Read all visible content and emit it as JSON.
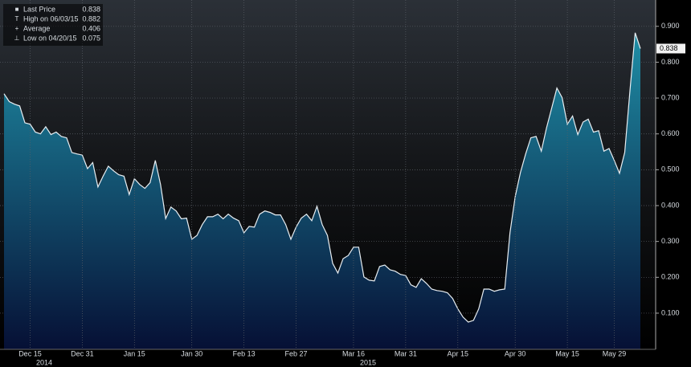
{
  "chart_data": {
    "type": "area",
    "line_color": "#e8eef2",
    "fill_top": "#1f8ea6",
    "fill_bottom": "#061035",
    "grid": true,
    "ylim": [
      0,
      0.96
    ],
    "yticks": [
      {
        "value": 0.1,
        "label": "0.100"
      },
      {
        "value": 0.2,
        "label": "0.200"
      },
      {
        "value": 0.3,
        "label": "0.300"
      },
      {
        "value": 0.4,
        "label": "0.400"
      },
      {
        "value": 0.5,
        "label": "0.500"
      },
      {
        "value": 0.6,
        "label": "0.600"
      },
      {
        "value": 0.7,
        "label": "0.700"
      },
      {
        "value": 0.8,
        "label": "0.800"
      },
      {
        "value": 0.9,
        "label": "0.900"
      }
    ],
    "years": [
      "2014",
      "2015"
    ],
    "legend": [
      {
        "label": "Last Price",
        "value": 0.838
      },
      {
        "label": "High on 06/03/15",
        "value": 0.882
      },
      {
        "label": "Average",
        "value": 0.406
      },
      {
        "label": "Low on 04/20/15",
        "value": 0.075
      }
    ],
    "categories": [
      null,
      null,
      null,
      null,
      null,
      "Dec 15",
      null,
      null,
      null,
      null,
      null,
      null,
      null,
      null,
      null,
      "Dec 31",
      null,
      null,
      null,
      null,
      null,
      null,
      null,
      null,
      null,
      "Jan 15",
      null,
      null,
      null,
      null,
      null,
      null,
      null,
      null,
      null,
      null,
      "Jan 30",
      null,
      null,
      null,
      null,
      null,
      null,
      null,
      null,
      null,
      "Feb 13",
      null,
      null,
      null,
      null,
      null,
      null,
      null,
      null,
      null,
      "Feb 27",
      null,
      null,
      null,
      null,
      null,
      null,
      null,
      null,
      null,
      null,
      "Mar 16",
      null,
      null,
      null,
      null,
      null,
      null,
      null,
      null,
      null,
      "Mar 31",
      null,
      null,
      null,
      null,
      null,
      null,
      null,
      null,
      null,
      "Apr 15",
      null,
      null,
      null,
      null,
      null,
      null,
      null,
      null,
      null,
      null,
      "Apr 30",
      null,
      null,
      null,
      null,
      null,
      null,
      null,
      null,
      null,
      "May 15",
      null,
      null,
      null,
      null,
      null,
      null,
      null,
      null,
      "May 29",
      null,
      null,
      null,
      null,
      null
    ],
    "values": [
      0.712,
      0.69,
      0.683,
      0.678,
      0.631,
      0.627,
      0.605,
      0.6,
      0.62,
      0.598,
      0.605,
      0.593,
      0.589,
      0.548,
      0.544,
      0.541,
      0.503,
      0.52,
      0.452,
      0.482,
      0.51,
      0.497,
      0.486,
      0.482,
      0.431,
      0.475,
      0.459,
      0.448,
      0.464,
      0.526,
      0.459,
      0.364,
      0.396,
      0.385,
      0.363,
      0.365,
      0.306,
      0.317,
      0.347,
      0.369,
      0.369,
      0.376,
      0.363,
      0.376,
      0.365,
      0.358,
      0.324,
      0.342,
      0.34,
      0.376,
      0.385,
      0.381,
      0.374,
      0.374,
      0.347,
      0.306,
      0.34,
      0.365,
      0.376,
      0.358,
      0.398,
      0.347,
      0.317,
      0.239,
      0.212,
      0.252,
      0.261,
      0.284,
      0.284,
      0.201,
      0.192,
      0.19,
      0.23,
      0.234,
      0.221,
      0.217,
      0.208,
      0.205,
      0.179,
      0.172,
      0.196,
      0.183,
      0.167,
      0.163,
      0.161,
      0.157,
      0.141,
      0.112,
      0.089,
      0.075,
      0.08,
      0.112,
      0.167,
      0.167,
      0.161,
      0.165,
      0.167,
      0.324,
      0.425,
      0.492,
      0.544,
      0.589,
      0.593,
      0.552,
      0.616,
      0.672,
      0.728,
      0.701,
      0.627,
      0.65,
      0.598,
      0.633,
      0.641,
      0.605,
      0.609,
      0.552,
      0.559,
      0.526,
      0.49,
      0.548,
      0.72,
      0.882,
      0.838
    ]
  }
}
